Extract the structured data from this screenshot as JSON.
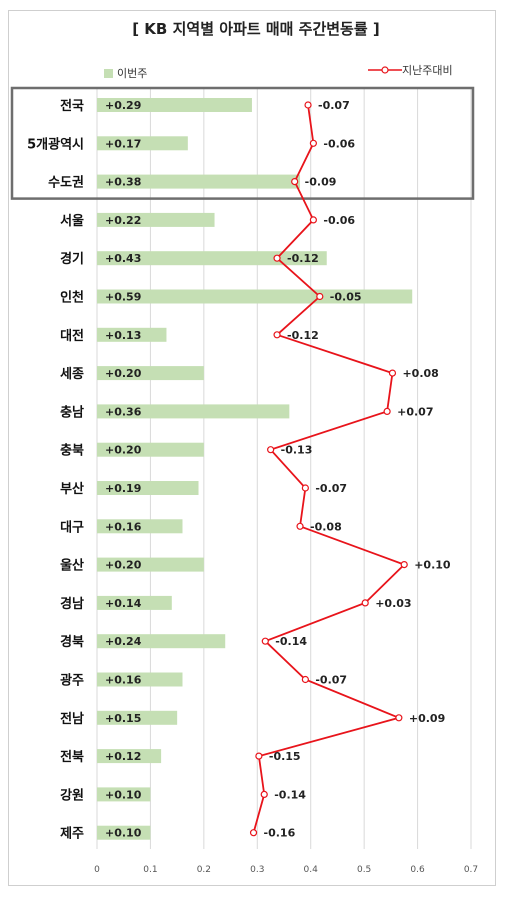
{
  "chart_data": {
    "type": "bar",
    "title": "[ KB 지역별 아파트 매매 주간변동률 ]",
    "categories": [
      "전국",
      "5개광역시",
      "수도권",
      "서울",
      "경기",
      "인천",
      "대전",
      "세종",
      "충남",
      "충북",
      "부산",
      "대구",
      "울산",
      "경남",
      "경북",
      "광주",
      "전남",
      "전북",
      "강원",
      "제주"
    ],
    "series": [
      {
        "name": "이번주",
        "type": "bar",
        "color": "#c5dfb4",
        "values": [
          0.29,
          0.17,
          0.38,
          0.22,
          0.43,
          0.59,
          0.13,
          0.2,
          0.36,
          0.2,
          0.19,
          0.16,
          0.2,
          0.14,
          0.24,
          0.16,
          0.15,
          0.12,
          0.1,
          0.1
        ],
        "labels": [
          "+0.29",
          "+0.17",
          "+0.38",
          "+0.22",
          "+0.43",
          "+0.59",
          "+0.13",
          "+0.20",
          "+0.36",
          "+0.20",
          "+0.19",
          "+0.16",
          "+0.20",
          "+0.14",
          "+0.24",
          "+0.16",
          "+0.15",
          "+0.12",
          "+0.10",
          "+0.10"
        ]
      },
      {
        "name": "지난주대비",
        "type": "line",
        "color": "#e8141b",
        "values": [
          0.395,
          0.405,
          0.37,
          0.405,
          0.337,
          0.417,
          0.337,
          0.553,
          0.543,
          0.325,
          0.39,
          0.38,
          0.575,
          0.502,
          0.315,
          0.39,
          0.565,
          0.303,
          0.313,
          0.293
        ],
        "labels": [
          "-0.07",
          "-0.06",
          "-0.09",
          "-0.06",
          "-0.12",
          "-0.05",
          "-0.12",
          "+0.08",
          "+0.07",
          "-0.13",
          "-0.07",
          "-0.08",
          "+0.10",
          "+0.03",
          "-0.14",
          "-0.07",
          "+0.09",
          "-0.15",
          "-0.14",
          "-0.16"
        ]
      }
    ],
    "xlim": [
      0,
      0.7
    ],
    "xticks": [
      "0",
      "0.1",
      "0.2",
      "0.3",
      "0.4",
      "0.5",
      "0.6",
      "0.7"
    ],
    "grid": true,
    "legend": "top",
    "highlight_box": [
      "전국",
      "5개광역시",
      "수도권"
    ]
  }
}
